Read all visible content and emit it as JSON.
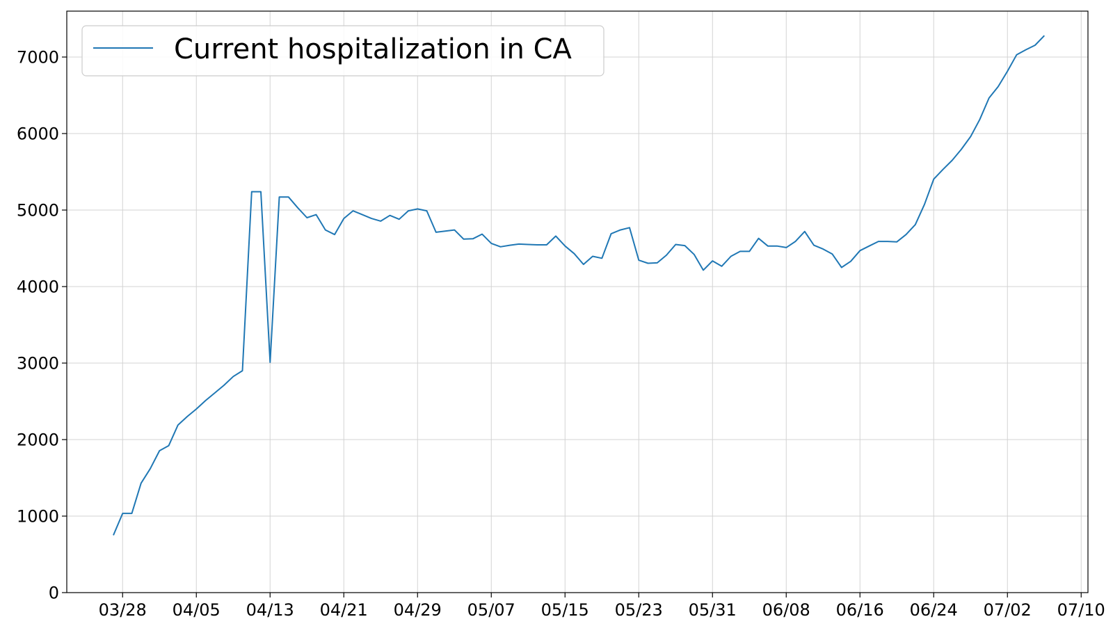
{
  "chart_data": {
    "type": "line",
    "title": "",
    "xlabel": "",
    "ylabel": "",
    "x_start": "03/27",
    "ylim": [
      0,
      7600
    ],
    "y_ticks": [
      0,
      1000,
      2000,
      3000,
      4000,
      5000,
      6000,
      7000
    ],
    "x_ticks": [
      "03/28",
      "04/05",
      "04/13",
      "04/21",
      "04/29",
      "05/07",
      "05/15",
      "05/23",
      "05/31",
      "06/08",
      "06/16",
      "06/24",
      "07/02",
      "07/10"
    ],
    "grid": true,
    "legend_position": "top-left",
    "series": [
      {
        "name": "Current hospitalization in CA",
        "color": "#1f77b4",
        "values": [
          750,
          1035,
          1035,
          1430,
          1620,
          1855,
          1920,
          2190,
          2300,
          2400,
          2510,
          2610,
          2710,
          2825,
          2900,
          5240,
          5240,
          3010,
          5170,
          5170,
          5030,
          4900,
          4940,
          4740,
          4680,
          4890,
          4990,
          4940,
          4890,
          4855,
          4930,
          4880,
          4990,
          5015,
          4990,
          4710,
          4725,
          4740,
          4620,
          4625,
          4685,
          4565,
          4520,
          4540,
          4555,
          4550,
          4545,
          4545,
          4660,
          4530,
          4430,
          4290,
          4395,
          4370,
          4690,
          4740,
          4770,
          4345,
          4305,
          4310,
          4410,
          4550,
          4535,
          4420,
          4215,
          4335,
          4265,
          4395,
          4460,
          4460,
          4630,
          4530,
          4530,
          4510,
          4590,
          4720,
          4540,
          4490,
          4425,
          4250,
          4330,
          4470,
          4530,
          4590,
          4590,
          4585,
          4680,
          4810,
          5075,
          5405,
          5530,
          5650,
          5795,
          5960,
          6185,
          6465,
          6615,
          6815,
          7030,
          7095,
          7155,
          7280
        ]
      }
    ]
  }
}
